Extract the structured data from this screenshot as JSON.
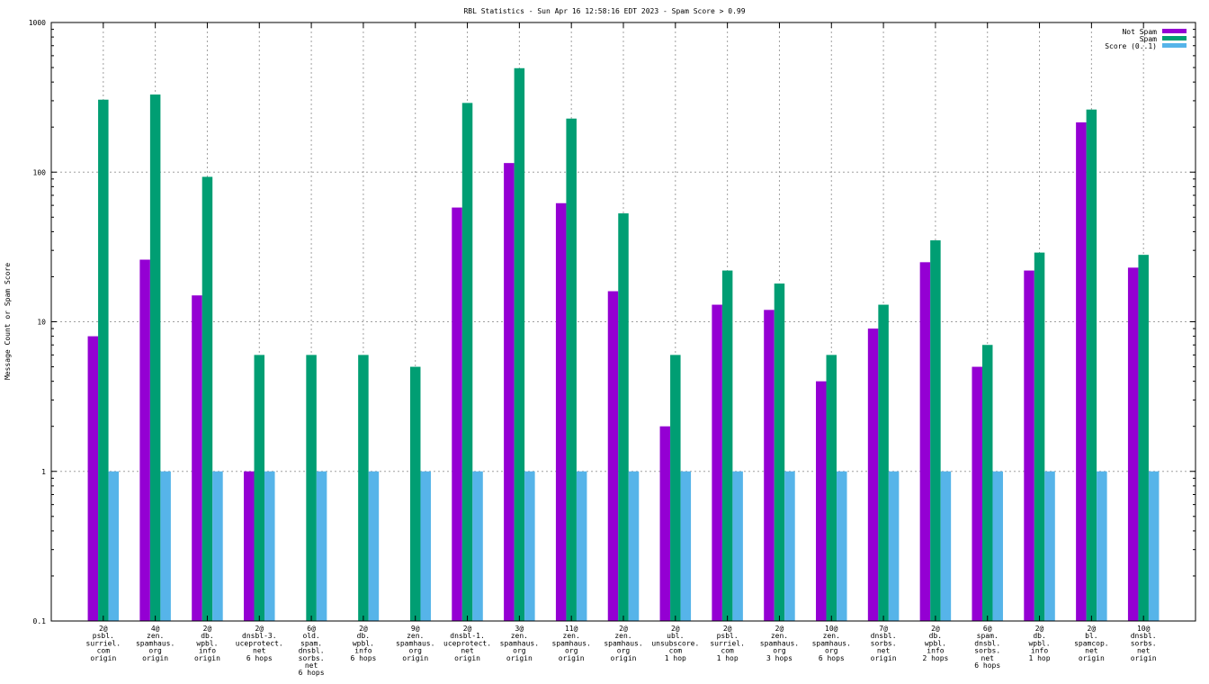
{
  "chart_data": {
    "type": "bar",
    "title": "RBL Statistics - Sun Apr 16 12:58:16 EDT 2023 - Spam Score > 0.99",
    "ylabel": "Message Count or Spam Score",
    "xlabel": "",
    "yscale": "log",
    "ylim": [
      0.1,
      1000
    ],
    "yticks": [
      "0.1",
      "1",
      "10",
      "100",
      "1000"
    ],
    "grid": true,
    "legend_position": "top-right",
    "categories": [
      [
        "2@",
        "psbl.",
        "surriel.",
        "com",
        "origin"
      ],
      [
        "4@",
        "zen.",
        "spamhaus.",
        "org",
        "origin"
      ],
      [
        "2@",
        "db.",
        "wpbl.",
        "info",
        "origin"
      ],
      [
        "2@",
        "dnsbl-3.",
        "uceprotect.",
        "net",
        "6 hops"
      ],
      [
        "6@",
        "old.",
        "spam.",
        "dnsbl.",
        "sorbs.",
        "net",
        "6 hops"
      ],
      [
        "2@",
        "db.",
        "wpbl.",
        "info",
        "6 hops"
      ],
      [
        "9@",
        "zen.",
        "spamhaus.",
        "org",
        "origin"
      ],
      [
        "2@",
        "dnsbl-1.",
        "uceprotect.",
        "net",
        "origin"
      ],
      [
        "3@",
        "zen.",
        "spamhaus.",
        "org",
        "origin"
      ],
      [
        "11@",
        "zen.",
        "spamhaus.",
        "org",
        "origin"
      ],
      [
        "2@",
        "zen.",
        "spamhaus.",
        "org",
        "origin"
      ],
      [
        "2@",
        "ubl.",
        "unsubscore.",
        "com",
        "1 hop"
      ],
      [
        "2@",
        "psbl.",
        "surriel.",
        "com",
        "1 hop"
      ],
      [
        "2@",
        "zen.",
        "spamhaus.",
        "org",
        "3 hops"
      ],
      [
        "10@",
        "zen.",
        "spamhaus.",
        "org",
        "6 hops"
      ],
      [
        "7@",
        "dnsbl.",
        "sorbs.",
        "net",
        "origin"
      ],
      [
        "2@",
        "db.",
        "wpbl.",
        "info",
        "2 hops"
      ],
      [
        "6@",
        "spam.",
        "dnsbl.",
        "sorbs.",
        "net",
        "6 hops"
      ],
      [
        "2@",
        "db.",
        "wpbl.",
        "info",
        "1 hop"
      ],
      [
        "2@",
        "bl.",
        "spamcop.",
        "net",
        "origin"
      ],
      [
        "10@",
        "dnsbl.",
        "sorbs.",
        "net",
        "origin"
      ]
    ],
    "series": [
      {
        "name": "Not Spam",
        "color": "#9400d3",
        "values": [
          8,
          26,
          15,
          1,
          null,
          null,
          null,
          58,
          115,
          62,
          16,
          2,
          13,
          12,
          4,
          9,
          25,
          5,
          22,
          215,
          23
        ]
      },
      {
        "name": "Spam",
        "color": "#009e73",
        "values": [
          305,
          330,
          93,
          6,
          6,
          6,
          5,
          290,
          495,
          228,
          53,
          6,
          22,
          18,
          6,
          13,
          35,
          7,
          29,
          262,
          28
        ]
      },
      {
        "name": "Score (0..1)",
        "color": "#56b4e9",
        "values": [
          1,
          1,
          1,
          1,
          1,
          1,
          1,
          1,
          1,
          1,
          1,
          1,
          1,
          1,
          1,
          1,
          1,
          1,
          1,
          1,
          1
        ]
      }
    ]
  }
}
